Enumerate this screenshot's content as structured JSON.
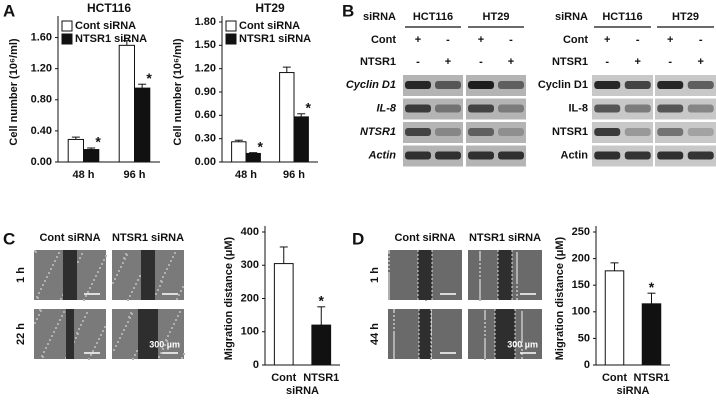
{
  "panels": [
    "A",
    "B",
    "C",
    "D"
  ],
  "blots": [
    {
      "header": "siRNA",
      "cell_lines": [
        "HCT116",
        "HT29"
      ],
      "rows": [
        {
          "label": "Cont",
          "signs": [
            "+",
            "-",
            "+",
            "-"
          ]
        },
        {
          "label": "NTSR1",
          "signs": [
            "-",
            "+",
            "-",
            "+"
          ]
        }
      ],
      "genes": [
        "Cyclin D1",
        "IL-8",
        "NTSR1",
        "Actin"
      ]
    },
    {
      "header": "siRNA",
      "cell_lines": [
        "HCT116",
        "HT29"
      ],
      "rows": [
        {
          "label": "Cont",
          "signs": [
            "+",
            "-",
            "+",
            "-"
          ]
        },
        {
          "label": "NTSR1",
          "signs": [
            "-",
            "+",
            "-",
            "+"
          ]
        }
      ],
      "genes": [
        "Cyclin D1",
        "IL-8",
        "NTSR1",
        "Actin"
      ]
    }
  ],
  "migration": [
    {
      "columns": [
        "Cont siRNA",
        "NTSR1 siRNA"
      ],
      "times": [
        "1 h",
        "22 h"
      ],
      "scale": "300 µm"
    },
    {
      "columns": [
        "Cont siRNA",
        "NTSR1 siRNA"
      ],
      "times": [
        "1 h",
        "44 h"
      ],
      "scale": "300 µm"
    }
  ],
  "chart_data": [
    {
      "type": "bar",
      "title": "HCT116",
      "y_label": "Cell number (10⁶/ml)",
      "categories": [
        "48 h",
        "96 h"
      ],
      "series": [
        {
          "name": "Cont siRNA",
          "color": "#ffffff",
          "values": [
            0.29,
            1.5
          ],
          "errors": [
            0.03,
            0.06
          ]
        },
        {
          "name": "NTSR1 siRNA",
          "color": "#111111",
          "values": [
            0.16,
            0.95
          ],
          "errors": [
            0.02,
            0.05
          ]
        }
      ],
      "significance": "*",
      "ylim": [
        0,
        1.8
      ],
      "yticks": [
        {
          "value": 0,
          "label": "0.00"
        },
        {
          "value": 0.4,
          "label": "0.40"
        },
        {
          "value": 0.8,
          "label": "0.80"
        },
        {
          "value": 1.2,
          "label": "1.20"
        },
        {
          "value": 1.6,
          "label": "1.60"
        }
      ]
    },
    {
      "type": "bar",
      "title": "HT29",
      "y_label": "Cell number (10⁶/ml)",
      "categories": [
        "48 h",
        "96 h"
      ],
      "series": [
        {
          "name": "Cont siRNA",
          "color": "#ffffff",
          "values": [
            0.26,
            1.15
          ],
          "errors": [
            0.02,
            0.07
          ]
        },
        {
          "name": "NTSR1 siRNA",
          "color": "#111111",
          "values": [
            0.11,
            0.58
          ],
          "errors": [
            0.01,
            0.04
          ]
        }
      ],
      "significance": "*",
      "ylim": [
        0,
        1.8
      ],
      "yticks": [
        {
          "value": 0,
          "label": "0.00"
        },
        {
          "value": 0.3,
          "label": "0.30"
        },
        {
          "value": 0.6,
          "label": "0.60"
        },
        {
          "value": 0.9,
          "label": "0.90"
        },
        {
          "value": 1.2,
          "label": "1.20"
        },
        {
          "value": 1.5,
          "label": "1.50"
        },
        {
          "value": 1.8,
          "label": "1.80"
        }
      ]
    },
    {
      "type": "bar",
      "y_label": "Migration distance (μM)",
      "categories": [
        "Cont",
        "NTSR1"
      ],
      "x_label": "siRNA",
      "series": [
        {
          "colors": [
            "#ffffff",
            "#111111"
          ],
          "values": [
            305,
            120
          ],
          "errors": [
            50,
            55
          ]
        }
      ],
      "significance": "*",
      "ylim": [
        0,
        400
      ],
      "yticks": [
        0,
        100,
        200,
        300,
        400
      ]
    },
    {
      "type": "bar",
      "y_label": "Migration distance (μM)",
      "categories": [
        "Cont",
        "NTSR1"
      ],
      "x_label": "siRNA",
      "series": [
        {
          "colors": [
            "#ffffff",
            "#111111"
          ],
          "values": [
            177,
            115
          ],
          "errors": [
            15,
            20
          ]
        }
      ],
      "significance": "*",
      "ylim": [
        0,
        250
      ],
      "yticks": [
        0,
        50,
        100,
        150,
        200,
        250
      ]
    }
  ]
}
